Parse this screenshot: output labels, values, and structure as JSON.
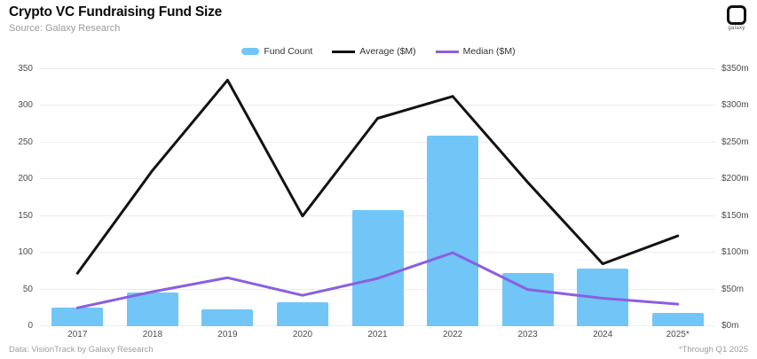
{
  "header": {
    "title": "Crypto VC Fundraising Fund Size",
    "subtitle": "Source: Galaxy Research",
    "logo_text": "galaxy"
  },
  "chart_data": {
    "type": "combo-bar-line",
    "title": "Crypto VC Fundraising Fund Size",
    "categories": [
      "2017",
      "2018",
      "2019",
      "2020",
      "2021",
      "2022",
      "2023",
      "2024",
      "2025*"
    ],
    "series": [
      {
        "name": "Fund Count",
        "type": "bar",
        "axis": "left",
        "color": "#71C6F7",
        "values": [
          25,
          46,
          23,
          33,
          158,
          260,
          73,
          78,
          18
        ]
      },
      {
        "name": "Average ($M)",
        "type": "line",
        "axis": "right",
        "color": "#121212",
        "values": [
          72,
          212,
          335,
          150,
          283,
          313,
          196,
          85,
          123
        ]
      },
      {
        "name": "Median ($M)",
        "type": "line",
        "axis": "right",
        "color": "#8A5FE0",
        "values": [
          25,
          47,
          66,
          42,
          65,
          100,
          50,
          38,
          30
        ]
      }
    ],
    "left_axis": {
      "min": 0,
      "max": 350,
      "ticks": [
        0,
        50,
        100,
        150,
        200,
        250,
        300,
        350
      ]
    },
    "right_axis": {
      "min": 0,
      "max": 350,
      "ticks": [
        "$0m",
        "$50m",
        "$100m",
        "$150m",
        "$200m",
        "$250m",
        "$300m",
        "$350m"
      ]
    },
    "grid": true,
    "legend_position": "top-center"
  },
  "footer": {
    "left": "Data: VisionTrack by Galaxy Research",
    "right": "*Through Q1 2025"
  }
}
